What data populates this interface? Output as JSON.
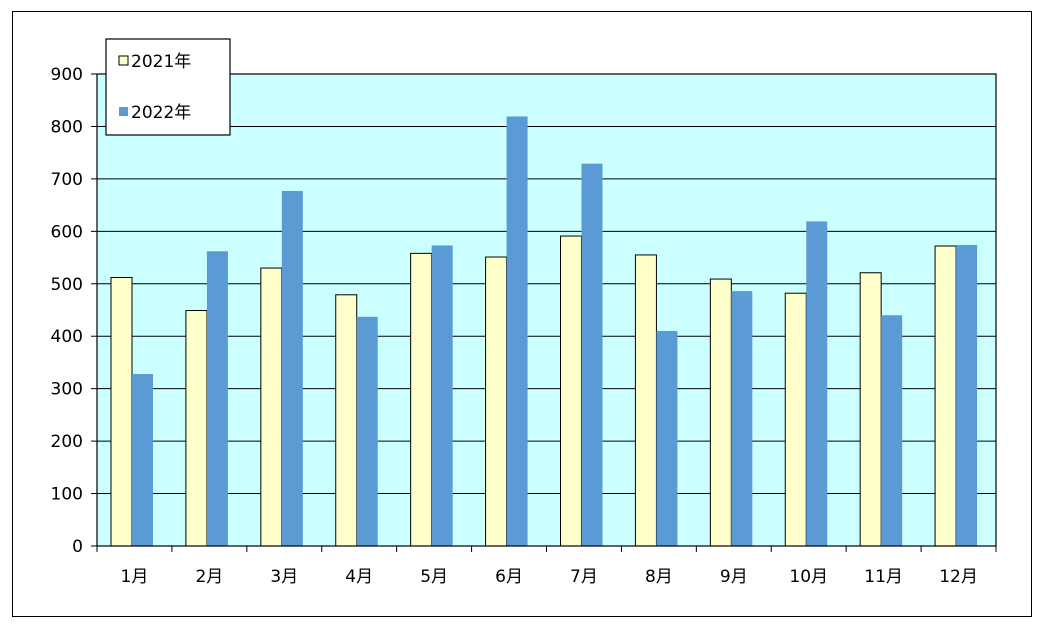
{
  "chart_data": {
    "type": "bar",
    "categories": [
      "1月",
      "2月",
      "3月",
      "4月",
      "5月",
      "6月",
      "7月",
      "8月",
      "9月",
      "10月",
      "11月",
      "12月"
    ],
    "series": [
      {
        "name": "2021年",
        "values": [
          512,
          449,
          530,
          479,
          558,
          551,
          591,
          555,
          509,
          482,
          521,
          572
        ],
        "color": "#FFFFCC"
      },
      {
        "name": "2022年",
        "values": [
          328,
          562,
          677,
          437,
          573,
          819,
          729,
          410,
          486,
          619,
          440,
          574
        ],
        "color": "#5B9BD5"
      }
    ],
    "y_ticks": [
      "0",
      "100",
      "200",
      "300",
      "400",
      "500",
      "600",
      "700",
      "800",
      "900"
    ],
    "ylim": [
      0,
      900
    ],
    "grid": true,
    "legend_position": "top-left",
    "plot_background": "#CCFFFF"
  }
}
